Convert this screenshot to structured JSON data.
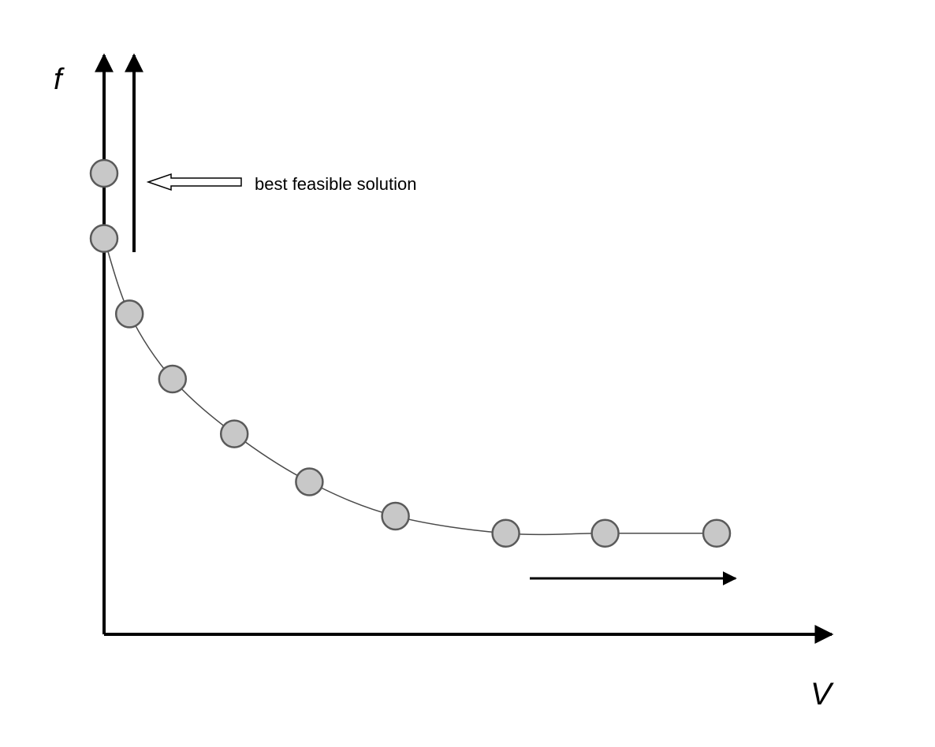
{
  "diagram": {
    "y_axis_label": "f",
    "x_axis_label": "V",
    "annotation": "best feasible solution"
  },
  "colors": {
    "axis": "#000000",
    "curve": "#4a4a4a",
    "node_fill": "#c8c8c8",
    "node_stroke": "#5a5a5a",
    "annotation_arrow_fill": "#ffffff",
    "background": "#ffffff"
  },
  "chart_data": {
    "type": "line",
    "title": "",
    "xlabel": "V",
    "ylabel": "f",
    "series": [
      {
        "points": [
          [
            0,
            100
          ],
          [
            0,
            81
          ],
          [
            2.3,
            59
          ],
          [
            6.2,
            40
          ],
          [
            11.8,
            24
          ],
          [
            18.6,
            10
          ],
          [
            26.4,
            0
          ],
          [
            36.4,
            -5
          ],
          [
            45.4,
            -5
          ],
          [
            55.5,
            -5
          ]
        ]
      }
    ],
    "grid": false,
    "legend": "none"
  }
}
